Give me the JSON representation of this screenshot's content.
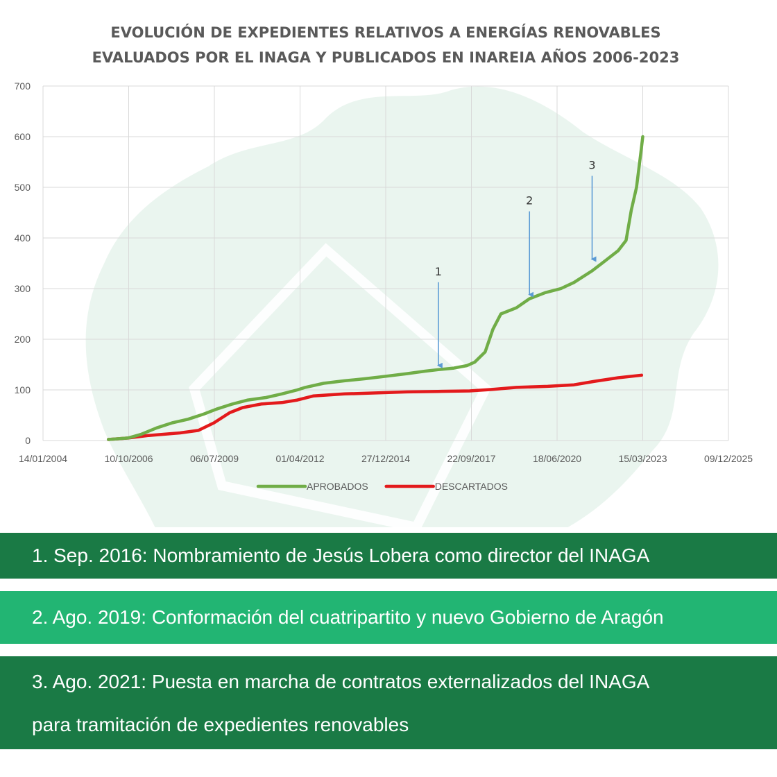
{
  "colors": {
    "aprobados": "#70ad47",
    "descartados": "#e31a1c",
    "grid": "#d9d9d9",
    "arrow": "#5b9bd5",
    "watermark": "#e3f2ea",
    "note_dark": "#1a7a45",
    "note_light": "#22b573"
  },
  "chart_data": {
    "type": "line",
    "title_lines": [
      "EVOLUCIÓN DE EXPEDIENTES RELATIVOS A ENERGÍAS RENOVABLES",
      "EVALUADOS POR EL INAGA Y PUBLICADOS EN INAREIA AÑOS 2006-2023"
    ],
    "x_axis": {
      "type": "date",
      "min": "2004-01-14",
      "max": "2025-12-09",
      "tick_labels": [
        "14/01/2004",
        "10/10/2006",
        "06/07/2009",
        "01/04/2012",
        "27/12/2014",
        "22/09/2017",
        "18/06/2020",
        "15/03/2023",
        "09/12/2025"
      ],
      "tick_dates": [
        "2004-01-14",
        "2006-10-10",
        "2009-07-06",
        "2012-04-01",
        "2014-12-27",
        "2017-09-22",
        "2020-06-18",
        "2023-03-15",
        "2025-12-09"
      ]
    },
    "y_axis": {
      "min": 0,
      "max": 700,
      "ticks": [
        0,
        100,
        200,
        300,
        400,
        500,
        600,
        700
      ]
    },
    "grid": true,
    "legend_position": "bottom",
    "series": [
      {
        "name": "APROBADOS",
        "color": "#70ad47",
        "points": [
          [
            "2006-02-15",
            2
          ],
          [
            "2006-10-01",
            5
          ],
          [
            "2007-03-01",
            12
          ],
          [
            "2007-09-01",
            25
          ],
          [
            "2008-03-01",
            35
          ],
          [
            "2008-09-01",
            42
          ],
          [
            "2009-03-01",
            52
          ],
          [
            "2009-08-01",
            62
          ],
          [
            "2010-02-01",
            72
          ],
          [
            "2010-08-01",
            80
          ],
          [
            "2011-03-01",
            85
          ],
          [
            "2011-09-01",
            92
          ],
          [
            "2012-03-01",
            100
          ],
          [
            "2012-06-01",
            105
          ],
          [
            "2013-01-01",
            113
          ],
          [
            "2013-09-01",
            118
          ],
          [
            "2014-05-01",
            122
          ],
          [
            "2015-01-01",
            127
          ],
          [
            "2015-09-01",
            132
          ],
          [
            "2016-04-01",
            137
          ],
          [
            "2016-09-01",
            140
          ],
          [
            "2017-03-01",
            143
          ],
          [
            "2017-08-01",
            148
          ],
          [
            "2017-11-01",
            155
          ],
          [
            "2018-03-01",
            175
          ],
          [
            "2018-06-01",
            220
          ],
          [
            "2018-09-01",
            250
          ],
          [
            "2019-03-01",
            262
          ],
          [
            "2019-08-01",
            280
          ],
          [
            "2020-02-01",
            292
          ],
          [
            "2020-08-01",
            300
          ],
          [
            "2021-01-01",
            312
          ],
          [
            "2021-08-01",
            335
          ],
          [
            "2022-01-01",
            355
          ],
          [
            "2022-06-01",
            375
          ],
          [
            "2022-09-01",
            395
          ],
          [
            "2022-11-01",
            455
          ],
          [
            "2023-01-01",
            500
          ],
          [
            "2023-02-15",
            560
          ],
          [
            "2023-03-15",
            600
          ]
        ]
      },
      {
        "name": "DESCARTADOS",
        "color": "#e31a1c",
        "points": [
          [
            "2006-02-15",
            2
          ],
          [
            "2006-10-01",
            5
          ],
          [
            "2007-06-01",
            10
          ],
          [
            "2008-06-01",
            15
          ],
          [
            "2009-01-01",
            20
          ],
          [
            "2009-07-01",
            35
          ],
          [
            "2010-01-01",
            55
          ],
          [
            "2010-06-01",
            65
          ],
          [
            "2011-01-01",
            72
          ],
          [
            "2011-09-01",
            75
          ],
          [
            "2012-03-01",
            80
          ],
          [
            "2012-09-01",
            88
          ],
          [
            "2013-09-01",
            92
          ],
          [
            "2014-09-01",
            94
          ],
          [
            "2015-09-01",
            96
          ],
          [
            "2016-09-01",
            97
          ],
          [
            "2017-09-01",
            98
          ],
          [
            "2018-06-01",
            101
          ],
          [
            "2019-03-01",
            105
          ],
          [
            "2020-03-01",
            107
          ],
          [
            "2021-01-01",
            110
          ],
          [
            "2021-09-01",
            117
          ],
          [
            "2022-06-01",
            124
          ],
          [
            "2023-03-01",
            129
          ]
        ]
      }
    ],
    "annotations": [
      {
        "label": "1",
        "date": "2016-09-01",
        "value": 140
      },
      {
        "label": "2",
        "date": "2019-08-01",
        "value": 280
      },
      {
        "label": "3",
        "date": "2021-08-01",
        "value": 350
      }
    ]
  },
  "notes": {
    "note1": "1. Sep. 2016: Nombramiento de Jesús Lobera como director del INAGA",
    "note2": "2. Ago. 2019: Conformación del cuatripartito y nuevo Gobierno de Aragón",
    "note3_line1": "3. Ago. 2021: Puesta en marcha de contratos externalizados del INAGA",
    "note3_line2": "para tramitación de expedientes renovables"
  }
}
